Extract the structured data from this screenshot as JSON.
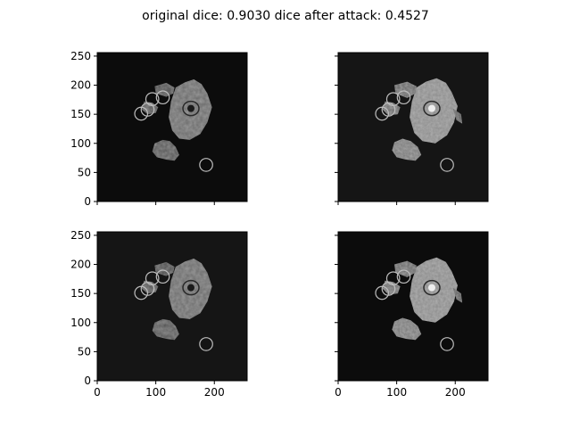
{
  "figure": {
    "title": "original dice: 0.9030 dice after attack: 0.4527"
  },
  "chart_data": {
    "type": "heatmap",
    "grid": {
      "rows": 2,
      "cols": 2,
      "sharex": true,
      "sharey": true
    },
    "xlim": [
      0,
      256
    ],
    "ylim": [
      0,
      256
    ],
    "x_ticks": [
      0,
      100,
      200
    ],
    "y_ticks": [
      0,
      50,
      100,
      150,
      200,
      250
    ],
    "grid_lines": false,
    "panels": [
      {
        "id": "top-left",
        "background": "#0c0c0c",
        "variant": "a"
      },
      {
        "id": "top-right",
        "background": "#151515",
        "variant": "b"
      },
      {
        "id": "bottom-left",
        "background": "#151515",
        "variant": "a"
      },
      {
        "id": "bottom-right",
        "background": "#0c0c0c",
        "variant": "b"
      }
    ],
    "markers": [
      {
        "x": 75,
        "y": 151,
        "r": 11
      },
      {
        "x": 86,
        "y": 158,
        "r": 11
      },
      {
        "x": 94,
        "y": 176,
        "r": 11
      },
      {
        "x": 112,
        "y": 179,
        "r": 11
      },
      {
        "x": 186,
        "y": 63,
        "r": 11
      }
    ],
    "marker_color": "#bdbdbd"
  }
}
